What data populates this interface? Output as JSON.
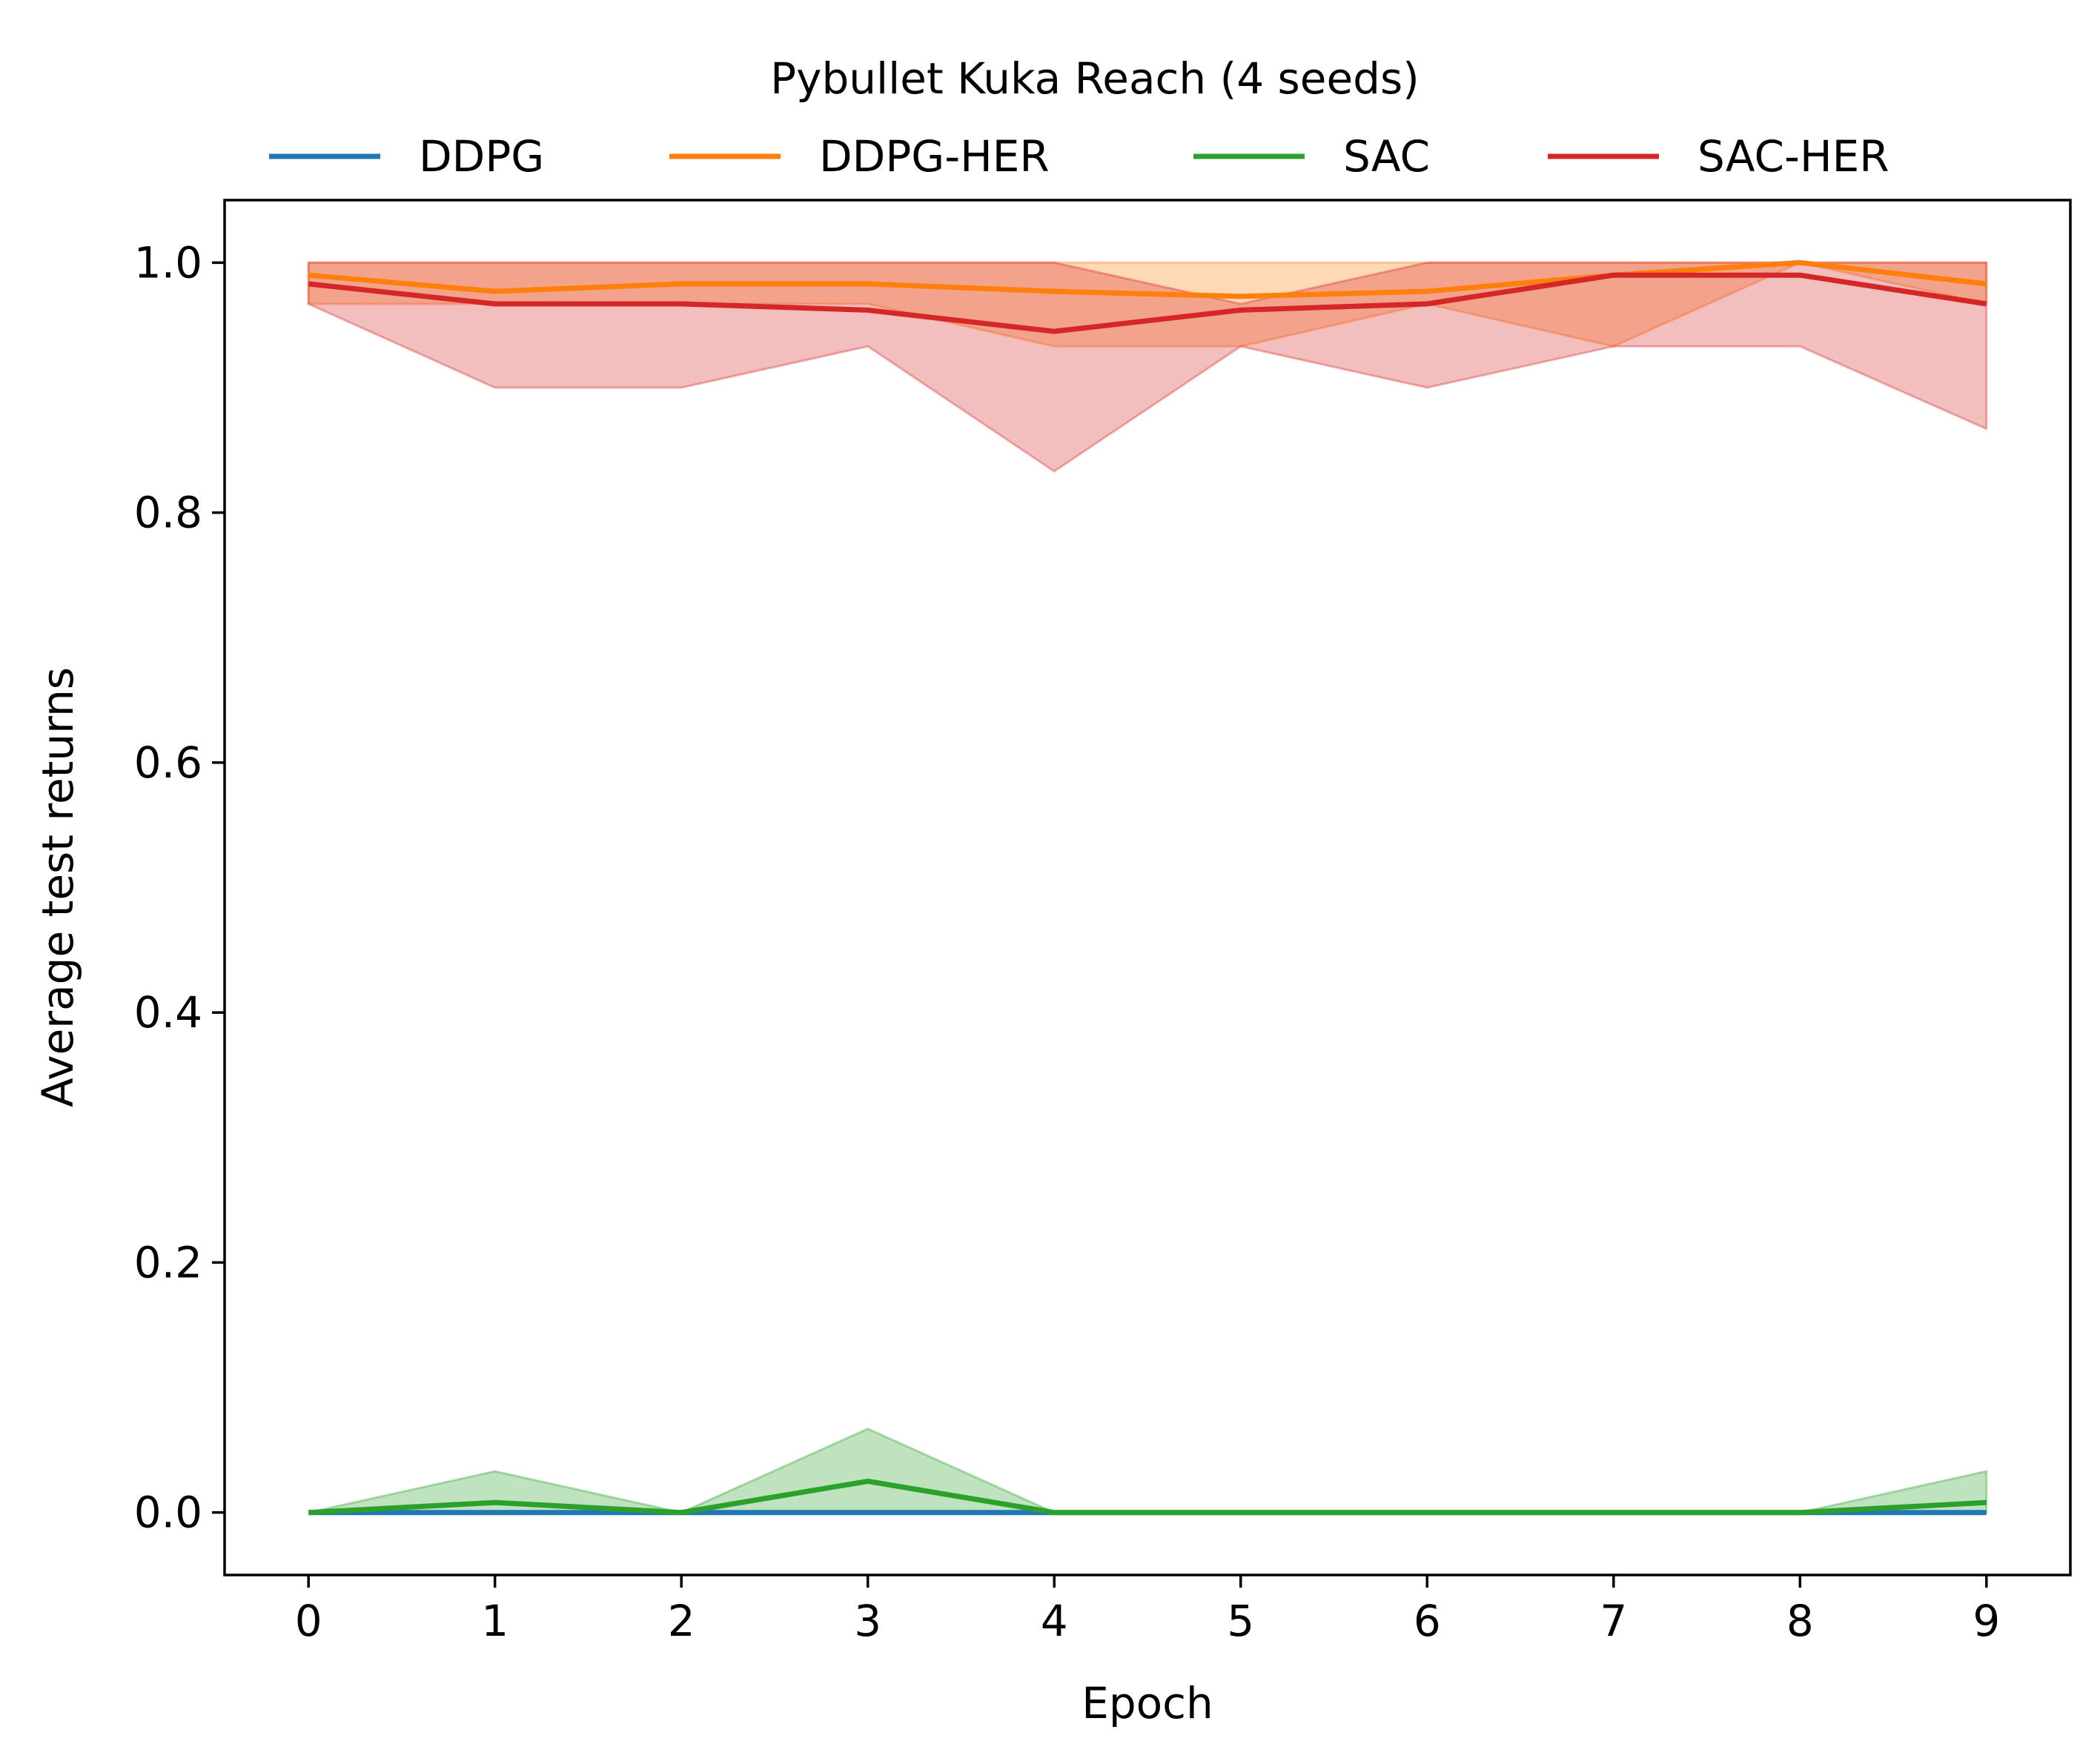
{
  "chart_data": {
    "type": "line",
    "title": "Pybullet Kuka Reach (4 seeds)",
    "xlabel": "Epoch",
    "ylabel": "Average test returns",
    "xlim": [
      -0.45,
      9.45
    ],
    "ylim": [
      -0.05,
      1.05
    ],
    "x": [
      0,
      1,
      2,
      3,
      4,
      5,
      6,
      7,
      8,
      9
    ],
    "x_ticks": [
      "0",
      "1",
      "2",
      "3",
      "4",
      "5",
      "6",
      "7",
      "8",
      "9"
    ],
    "y_ticks": [
      0.0,
      0.2,
      0.4,
      0.6,
      0.8,
      1.0
    ],
    "y_tick_labels": [
      "0.0",
      "0.2",
      "0.4",
      "0.6",
      "0.8",
      "1.0"
    ],
    "grid": false,
    "legend_position": "top-center",
    "series": [
      {
        "name": "DDPG",
        "color": "#1f77b4",
        "values": [
          0,
          0,
          0,
          0,
          0,
          0,
          0,
          0,
          0,
          0
        ],
        "band_low": [
          0,
          0,
          0,
          0,
          0,
          0,
          0,
          0,
          0,
          0
        ],
        "band_high": [
          0,
          0,
          0,
          0,
          0,
          0,
          0,
          0,
          0,
          0
        ]
      },
      {
        "name": "DDPG-HER",
        "color": "#ff7f0e",
        "values": [
          0.99,
          0.977,
          0.983,
          0.983,
          0.977,
          0.973,
          0.977,
          0.99,
          1.0,
          0.983
        ],
        "band_low": [
          0.967,
          0.967,
          0.967,
          0.967,
          0.933,
          0.933,
          0.967,
          0.933,
          1.0,
          0.967
        ],
        "band_high": [
          1.0,
          1.0,
          1.0,
          1.0,
          1.0,
          1.0,
          1.0,
          1.0,
          1.0,
          1.0
        ]
      },
      {
        "name": "SAC",
        "color": "#2ca02c",
        "values": [
          0,
          0.008,
          0,
          0.025,
          0,
          0,
          0,
          0,
          0,
          0.008
        ],
        "band_low": [
          0,
          0,
          0,
          0,
          0,
          0,
          0,
          0,
          0,
          0
        ],
        "band_high": [
          0,
          0.033,
          0,
          0.067,
          0,
          0,
          0,
          0,
          0,
          0.033
        ]
      },
      {
        "name": "SAC-HER",
        "color": "#d62728",
        "values": [
          0.983,
          0.967,
          0.967,
          0.962,
          0.945,
          0.962,
          0.967,
          0.99,
          0.99,
          0.967
        ],
        "band_low": [
          0.967,
          0.9,
          0.9,
          0.933,
          0.833,
          0.933,
          0.9,
          0.933,
          0.933,
          0.867
        ],
        "band_high": [
          1.0,
          1.0,
          1.0,
          1.0,
          1.0,
          0.967,
          1.0,
          1.0,
          1.0,
          1.0
        ]
      }
    ]
  }
}
